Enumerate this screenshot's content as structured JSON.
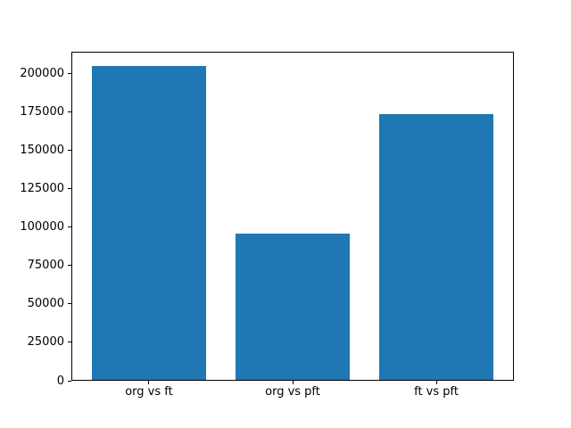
{
  "chart_data": {
    "type": "bar",
    "title": "",
    "xlabel": "",
    "ylabel": "",
    "categories": [
      "org vs ft",
      "org vs pft",
      "ft vs pft"
    ],
    "values": [
      204000,
      95000,
      173000
    ],
    "ylim": [
      0,
      214000
    ],
    "yticks": [
      0,
      25000,
      50000,
      75000,
      100000,
      125000,
      150000,
      175000,
      200000
    ],
    "grid": false,
    "legend": "none",
    "bar_color": "#1f77b4",
    "spine_color": "#000000",
    "background_color": "#ffffff",
    "bar_width_fraction": 0.8
  }
}
